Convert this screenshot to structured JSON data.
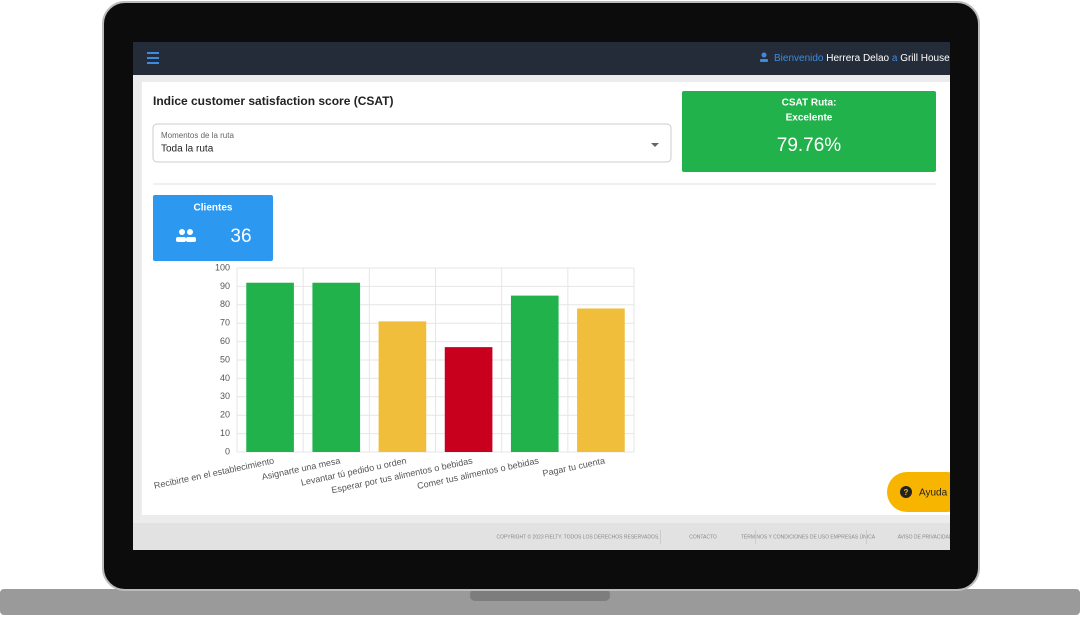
{
  "header": {
    "welcome": "Bienvenido",
    "user": "Herrera Delao",
    "connector": "a",
    "company": "Grill House"
  },
  "panel": {
    "title": "Indice customer satisfaction score (CSAT)",
    "select_label": "Momentos de la ruta",
    "select_value": "Toda la ruta"
  },
  "csat": {
    "title": "CSAT Ruta:",
    "status": "Excelente",
    "value": "79.76%"
  },
  "clients": {
    "label": "Clientes",
    "value": "36"
  },
  "help": "Ayuda",
  "footer": [
    "COPYRIGHT © 2023 FIELTY. TODOS LOS DERECHOS RESERVADOS.",
    "CONTACTO",
    "TÉRMINOS Y CONDICIONES DE USO EMPRESAS ÚNICA",
    "AVISO DE PRIVACIDAD"
  ],
  "chart_data": {
    "type": "bar",
    "categories": [
      "Recibirte en el establecimiento",
      "Asignarte una mesa",
      "Levantar tú pedido u orden",
      "Esperar por tus alimentos o bebidas",
      "Comer tus alimentos o bebidas",
      "Pagar tu cuenta"
    ],
    "values": [
      92,
      92,
      71,
      57,
      85,
      78
    ],
    "colors": [
      "#22b24c",
      "#22b24c",
      "#f0be3a",
      "#c8001e",
      "#22b24c",
      "#f0be3a"
    ],
    "ylim": [
      0,
      100
    ],
    "yticks": [
      0,
      10,
      20,
      30,
      40,
      50,
      60,
      70,
      80,
      90,
      100
    ],
    "grid": true
  }
}
